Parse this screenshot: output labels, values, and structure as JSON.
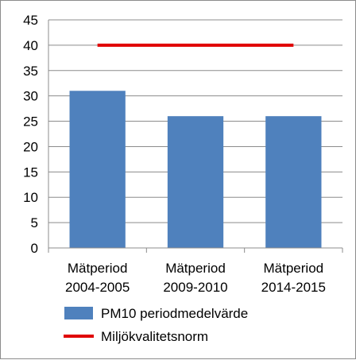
{
  "chart_data": {
    "type": "bar",
    "categories": [
      [
        "Mätperiod",
        "2004-2005"
      ],
      [
        "Mätperiod",
        "2009-2010"
      ],
      [
        "Mätperiod",
        "2014-2015"
      ]
    ],
    "series": [
      {
        "name": "PM10 periodmedelvärde",
        "type": "bar",
        "values": [
          31,
          26,
          26
        ],
        "color": "#4f81bd"
      },
      {
        "name": "Miljökvalitetsnorm",
        "type": "line",
        "values": [
          40,
          40,
          40
        ],
        "color": "#e00000"
      }
    ],
    "ylim": [
      0,
      45
    ],
    "yticks": [
      "0",
      "5",
      "10",
      "15",
      "20",
      "25",
      "30",
      "35",
      "40",
      "45"
    ],
    "grid": true,
    "legend_position": "bottom"
  }
}
